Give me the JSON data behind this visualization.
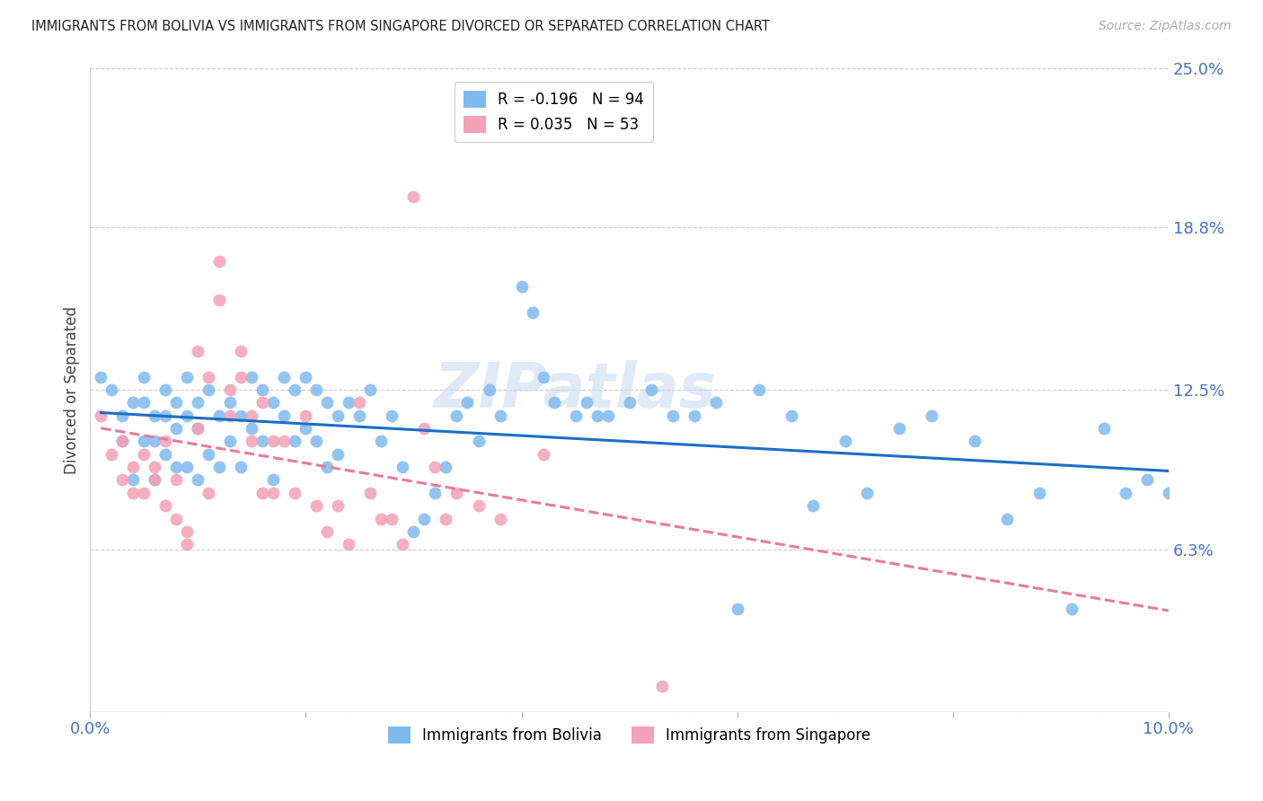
{
  "title": "IMMIGRANTS FROM BOLIVIA VS IMMIGRANTS FROM SINGAPORE DIVORCED OR SEPARATED CORRELATION CHART",
  "source": "Source: ZipAtlas.com",
  "ylabel": "Divorced or Separated",
  "xlim": [
    0.0,
    0.1
  ],
  "ylim": [
    0.0,
    0.25
  ],
  "xticks": [
    0.0,
    0.02,
    0.04,
    0.06,
    0.08,
    0.1
  ],
  "xticklabels": [
    "0.0%",
    "",
    "",
    "",
    "",
    "10.0%"
  ],
  "ytick_positions": [
    0.0,
    0.063,
    0.125,
    0.188,
    0.25
  ],
  "ytick_labels": [
    "",
    "6.3%",
    "12.5%",
    "18.8%",
    "25.0%"
  ],
  "bolivia_color": "#7fbaef",
  "singapore_color": "#f4a0b5",
  "bolivia_line_color": "#1a6fc4",
  "singapore_line_color": "#e87a9a",
  "legend_label_bolivia": "R = -0.196   N = 94",
  "legend_label_singapore": "R = 0.035   N = 53",
  "legend_x_labels": [
    "Immigrants from Bolivia",
    "Immigrants from Singapore"
  ],
  "watermark": "ZIPatlas",
  "bolivia_x": [
    0.001,
    0.002,
    0.003,
    0.003,
    0.004,
    0.004,
    0.005,
    0.005,
    0.005,
    0.006,
    0.006,
    0.006,
    0.007,
    0.007,
    0.007,
    0.008,
    0.008,
    0.008,
    0.009,
    0.009,
    0.009,
    0.01,
    0.01,
    0.01,
    0.011,
    0.011,
    0.012,
    0.012,
    0.013,
    0.013,
    0.014,
    0.014,
    0.015,
    0.015,
    0.016,
    0.016,
    0.017,
    0.017,
    0.018,
    0.018,
    0.019,
    0.019,
    0.02,
    0.02,
    0.021,
    0.021,
    0.022,
    0.022,
    0.023,
    0.023,
    0.024,
    0.025,
    0.026,
    0.027,
    0.028,
    0.029,
    0.03,
    0.031,
    0.032,
    0.033,
    0.034,
    0.035,
    0.036,
    0.037,
    0.038,
    0.04,
    0.041,
    0.042,
    0.043,
    0.045,
    0.046,
    0.047,
    0.048,
    0.05,
    0.052,
    0.054,
    0.056,
    0.058,
    0.06,
    0.062,
    0.065,
    0.067,
    0.07,
    0.072,
    0.075,
    0.078,
    0.082,
    0.085,
    0.088,
    0.091,
    0.094,
    0.096,
    0.098,
    0.1
  ],
  "bolivia_y": [
    0.13,
    0.125,
    0.115,
    0.105,
    0.12,
    0.09,
    0.13,
    0.12,
    0.105,
    0.115,
    0.105,
    0.09,
    0.125,
    0.115,
    0.1,
    0.12,
    0.11,
    0.095,
    0.13,
    0.115,
    0.095,
    0.12,
    0.11,
    0.09,
    0.125,
    0.1,
    0.115,
    0.095,
    0.12,
    0.105,
    0.115,
    0.095,
    0.13,
    0.11,
    0.125,
    0.105,
    0.12,
    0.09,
    0.13,
    0.115,
    0.125,
    0.105,
    0.13,
    0.11,
    0.125,
    0.105,
    0.12,
    0.095,
    0.115,
    0.1,
    0.12,
    0.115,
    0.125,
    0.105,
    0.115,
    0.095,
    0.07,
    0.075,
    0.085,
    0.095,
    0.115,
    0.12,
    0.105,
    0.125,
    0.115,
    0.165,
    0.155,
    0.13,
    0.12,
    0.115,
    0.12,
    0.115,
    0.115,
    0.12,
    0.125,
    0.115,
    0.115,
    0.12,
    0.04,
    0.125,
    0.115,
    0.08,
    0.105,
    0.085,
    0.11,
    0.115,
    0.105,
    0.075,
    0.085,
    0.04,
    0.11,
    0.085,
    0.09,
    0.085
  ],
  "singapore_x": [
    0.001,
    0.002,
    0.003,
    0.003,
    0.004,
    0.004,
    0.005,
    0.005,
    0.006,
    0.006,
    0.007,
    0.007,
    0.008,
    0.008,
    0.009,
    0.009,
    0.01,
    0.01,
    0.011,
    0.011,
    0.012,
    0.012,
    0.013,
    0.013,
    0.014,
    0.014,
    0.015,
    0.015,
    0.016,
    0.016,
    0.017,
    0.017,
    0.018,
    0.019,
    0.02,
    0.021,
    0.022,
    0.023,
    0.024,
    0.025,
    0.026,
    0.027,
    0.028,
    0.029,
    0.03,
    0.031,
    0.032,
    0.033,
    0.034,
    0.036,
    0.038,
    0.042,
    0.053
  ],
  "singapore_y": [
    0.115,
    0.1,
    0.09,
    0.105,
    0.085,
    0.095,
    0.1,
    0.085,
    0.09,
    0.095,
    0.105,
    0.08,
    0.09,
    0.075,
    0.065,
    0.07,
    0.14,
    0.11,
    0.13,
    0.085,
    0.16,
    0.175,
    0.125,
    0.115,
    0.13,
    0.14,
    0.105,
    0.115,
    0.12,
    0.085,
    0.105,
    0.085,
    0.105,
    0.085,
    0.115,
    0.08,
    0.07,
    0.08,
    0.065,
    0.12,
    0.085,
    0.075,
    0.075,
    0.065,
    0.2,
    0.11,
    0.095,
    0.075,
    0.085,
    0.08,
    0.075,
    0.1,
    0.01
  ]
}
